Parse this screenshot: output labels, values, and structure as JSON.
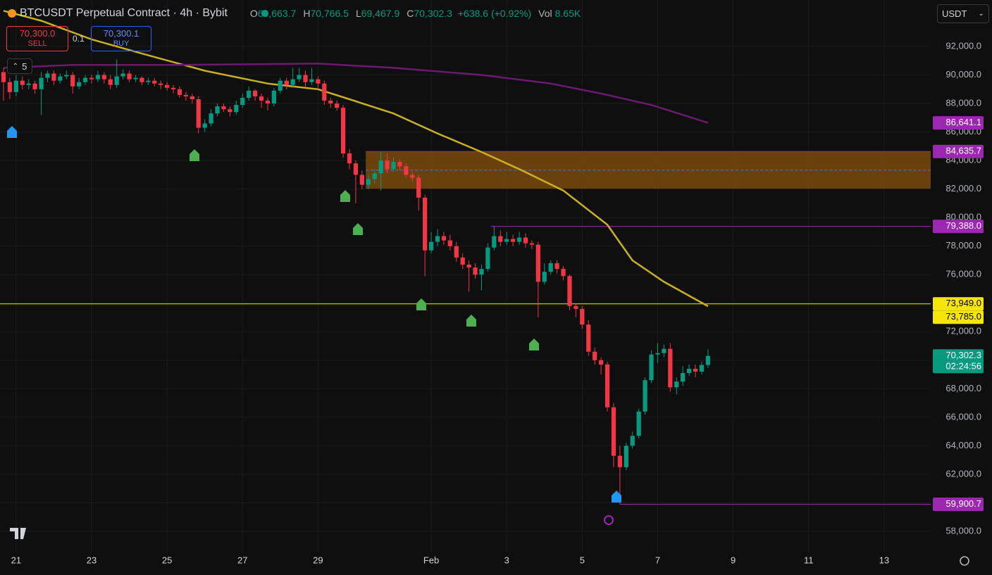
{
  "header": {
    "symbol": "BTCUSDT Perpetual Contract · 4h · Bybit",
    "quote": "USDT",
    "ohlc": [
      {
        "key": "O",
        "value": "69,663.7"
      },
      {
        "key": "H",
        "value": "70,766.5"
      },
      {
        "key": "L",
        "value": "69,467.9"
      },
      {
        "key": "C",
        "value": "70,302.3"
      }
    ],
    "change": "+638.6 (+0.92%)",
    "vol_key": "Vol",
    "vol": "8.65K"
  },
  "trade": {
    "sell_price": "70,300.0",
    "sell": "SELL",
    "qty": "0.1",
    "buy_price": "70,300.1",
    "buy": "BUY"
  },
  "indicators_count": "5",
  "chart_data": {
    "type": "candlestick",
    "up_color": "#089981",
    "down_color": "#f23645",
    "grid": true,
    "xlim": [
      -0.56,
      147.3
    ],
    "xticks": [
      {
        "value": 2,
        "label": "21"
      },
      {
        "value": 14,
        "label": "23"
      },
      {
        "value": 26,
        "label": "25"
      },
      {
        "value": 38,
        "label": "27"
      },
      {
        "value": 50,
        "label": "29"
      },
      {
        "value": 68,
        "label": "Feb"
      },
      {
        "value": 80,
        "label": "3"
      },
      {
        "value": 92,
        "label": "5"
      },
      {
        "value": 104,
        "label": "7"
      },
      {
        "value": 116,
        "label": "9"
      },
      {
        "value": 128,
        "label": "11"
      },
      {
        "value": 140,
        "label": "13"
      }
    ],
    "ylim": [
      56520,
      95257
    ],
    "yticks": [
      {
        "value": 58000,
        "label": "58,000.0"
      },
      {
        "value": 60000,
        "label": "60,000.0"
      },
      {
        "value": 62000,
        "label": "62,000.0"
      },
      {
        "value": 64000,
        "label": "64,000.0"
      },
      {
        "value": 66000,
        "label": "66,000.0"
      },
      {
        "value": 68000,
        "label": "68,000.0"
      },
      {
        "value": 70000,
        "label": "70,000.0"
      },
      {
        "value": 72000,
        "label": "72,000.0"
      },
      {
        "value": 74000,
        "label": "74,000.0"
      },
      {
        "value": 76000,
        "label": "76,000.0"
      },
      {
        "value": 78000,
        "label": "78,000.0"
      },
      {
        "value": 80000,
        "label": "80,000.0"
      },
      {
        "value": 82000,
        "label": "82,000.0"
      },
      {
        "value": 84000,
        "label": "84,000.0"
      },
      {
        "value": 86000,
        "label": "86,000.0"
      },
      {
        "value": 88000,
        "label": "88,000.0"
      },
      {
        "value": 90000,
        "label": "90,000.0"
      },
      {
        "value": 92000,
        "label": "92,000.0"
      }
    ],
    "open": [
      90200,
      89500,
      88800,
      89600,
      89300,
      89400,
      89000,
      89800,
      90100,
      89600,
      89900,
      90000,
      89200,
      89500,
      89800,
      89700,
      90000,
      89700,
      89300,
      89900,
      90100,
      89700,
      89800,
      89500,
      89600,
      89400,
      89300,
      89100,
      89000,
      88600,
      88500,
      88300,
      86300,
      86600,
      87300,
      87800,
      87600,
      87400,
      87900,
      88400,
      88900,
      88500,
      88200,
      88000,
      88900,
      89600,
      89300,
      89700,
      90000,
      89500,
      89700,
      89400,
      88200,
      88000,
      87700,
      84500,
      83800,
      83000,
      82300,
      82700,
      83100,
      84000,
      83400,
      83900,
      83600,
      83000,
      82800,
      81400,
      77700,
      78300,
      78700,
      78400,
      78000,
      77200,
      76700,
      76500,
      76000,
      76400,
      77900,
      78700,
      78300,
      78500,
      78300,
      78600,
      78200,
      78100,
      75500,
      76200,
      76800,
      76400,
      75900,
      73800,
      73600,
      72500,
      70600,
      70000,
      69700,
      66700,
      63300,
      62500,
      64000,
      64700,
      66400,
      68600,
      70400,
      70500,
      70800,
      68100,
      68500,
      69100,
      69400,
      69200,
      69663.7
    ],
    "high": [
      90500,
      89800,
      90000,
      89900,
      89700,
      89600,
      90200,
      90300,
      90300,
      90100,
      90300,
      90200,
      89800,
      90000,
      90000,
      90300,
      90200,
      90000,
      91100,
      90400,
      90300,
      90000,
      89900,
      89800,
      89800,
      89600,
      89500,
      89300,
      89200,
      88800,
      88700,
      88500,
      86900,
      87600,
      88000,
      88000,
      87800,
      88200,
      88700,
      89200,
      89000,
      88700,
      88400,
      89100,
      89800,
      89800,
      90500,
      90500,
      90300,
      90500,
      89900,
      89600,
      88400,
      88200,
      87900,
      84800,
      84000,
      83300,
      83000,
      83400,
      84600,
      84500,
      84200,
      84100,
      83800,
      83200,
      83000,
      81600,
      79000,
      79200,
      79000,
      78800,
      78300,
      77500,
      77000,
      76800,
      76700,
      78200,
      79400,
      79100,
      79000,
      78800,
      79000,
      78900,
      78400,
      78300,
      76800,
      77000,
      77000,
      76600,
      76000,
      74000,
      73800,
      72800,
      70900,
      70200,
      69900,
      67000,
      64000,
      64200,
      65000,
      66600,
      68800,
      70700,
      71200,
      71100,
      71200,
      68800,
      69600,
      69700,
      69700,
      69900,
      70766.5
    ],
    "low": [
      88200,
      88300,
      88500,
      89000,
      89000,
      88700,
      87200,
      89500,
      89300,
      89400,
      89700,
      88700,
      89000,
      89300,
      89400,
      89500,
      89400,
      89000,
      89100,
      89700,
      89500,
      89500,
      89300,
      89300,
      89200,
      89000,
      88900,
      88700,
      88400,
      88200,
      88000,
      85900,
      86000,
      86400,
      87100,
      87400,
      87100,
      87200,
      87700,
      88200,
      88200,
      87700,
      87500,
      87800,
      88700,
      89000,
      89100,
      89500,
      89200,
      89300,
      89100,
      87900,
      87700,
      87500,
      84200,
      83400,
      81000,
      82000,
      82000,
      82400,
      81900,
      83100,
      83200,
      83300,
      82800,
      82500,
      80500,
      75900,
      77500,
      78000,
      78100,
      77700,
      76900,
      76400,
      74800,
      75700,
      74900,
      76200,
      77700,
      78000,
      78100,
      78000,
      78100,
      77900,
      77800,
      73000,
      75300,
      76000,
      76100,
      75600,
      73500,
      73000,
      72200,
      70300,
      69700,
      69000,
      66400,
      62500,
      59900.7,
      62300,
      63800,
      64500,
      66200,
      68400,
      69800,
      70200,
      67800,
      67600,
      68200,
      68900,
      68800,
      69000,
      69467.9
    ],
    "close": [
      89500,
      88800,
      89600,
      89300,
      89400,
      89000,
      89800,
      90100,
      89600,
      89900,
      90000,
      89200,
      89500,
      89800,
      89700,
      90000,
      89700,
      89300,
      89900,
      90100,
      89700,
      89800,
      89500,
      89600,
      89400,
      89300,
      89100,
      89000,
      88600,
      88500,
      88300,
      86300,
      86600,
      87300,
      87800,
      87600,
      87400,
      87900,
      88400,
      88900,
      88500,
      88200,
      88000,
      88900,
      89600,
      89300,
      89700,
      90000,
      89500,
      89700,
      89400,
      88200,
      88000,
      87700,
      84500,
      83800,
      83000,
      82300,
      82700,
      83100,
      84000,
      83400,
      83900,
      83600,
      83000,
      82800,
      81400,
      77700,
      78300,
      78700,
      78400,
      78000,
      77200,
      76700,
      76500,
      76000,
      76400,
      77900,
      78700,
      78300,
      78500,
      78300,
      78600,
      78200,
      78100,
      75500,
      76200,
      76800,
      76400,
      75900,
      73800,
      73600,
      72500,
      70600,
      70000,
      69700,
      66700,
      63300,
      62500,
      64000,
      64700,
      66400,
      68600,
      70400,
      70500,
      70800,
      68100,
      68500,
      69100,
      69400,
      69200,
      69663.7,
      70302.3
    ],
    "moving_averages": [
      {
        "color": "#c8b020",
        "x": [
          0,
          6,
          14,
          22,
          32,
          42,
          50,
          55,
          62,
          69,
          76,
          82,
          89,
          96,
          100,
          105,
          112
        ],
        "values": [
          94500,
          93800,
          92500,
          91500,
          90300,
          89400,
          89000,
          88300,
          87300,
          85900,
          84600,
          83400,
          81900,
          79500,
          77000,
          75500,
          73785
        ],
        "tag_label": "73,785.0"
      },
      {
        "color": "#6a1b6e",
        "x": [
          0,
          11,
          28,
          50,
          62,
          76,
          87,
          95,
          103,
          112
        ],
        "values": [
          90500,
          90700,
          90700,
          90800,
          90500,
          90000,
          89400,
          88700,
          87900,
          86641.1
        ],
        "tag_label": "86,641.1"
      }
    ],
    "zone": {
      "from": 57.6,
      "top": 84635.7,
      "bottom": 82030,
      "mid": 83330,
      "top_label": "84,635.7",
      "fill": "#7a4a0c",
      "line_color": "#9c27b0",
      "mid_color": "#5b6bd6"
    },
    "levels": [
      {
        "value": 79388.0,
        "label": "79,388.0",
        "from": 77.5,
        "color": "#9c27b0"
      },
      {
        "value": 73949.0,
        "label": "73,949.0",
        "color": "#f5e50a"
      },
      {
        "value": 59900.7,
        "label": "59,900.7",
        "from": 98,
        "color": "#9c27b0"
      }
    ],
    "price_tag": {
      "label": "70,302.3",
      "countdown": "02:24:56",
      "color": "#089981"
    }
  }
}
